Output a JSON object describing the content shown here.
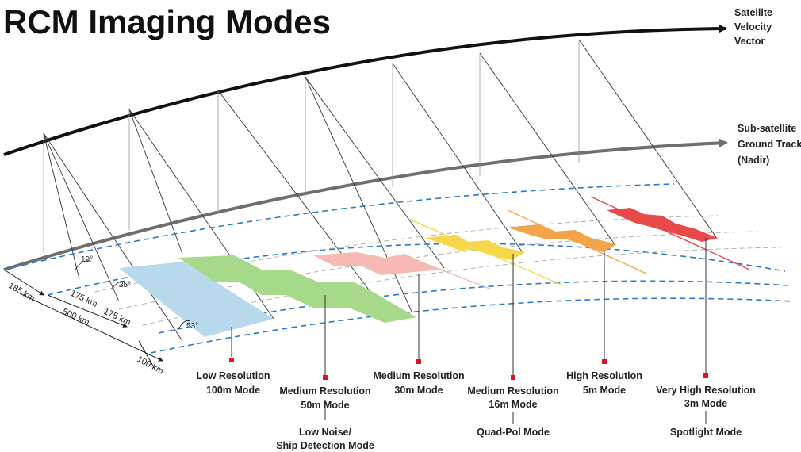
{
  "title": "RCM Imaging Modes",
  "annotations": {
    "velocity": [
      "Satellite",
      "Velocity",
      "Vector"
    ],
    "ground_track": [
      "Sub-satellite",
      "Ground Track",
      "(Nadir)"
    ]
  },
  "angles": {
    "a1": "19°",
    "a2": "35°",
    "a3": "53°"
  },
  "dimensions": {
    "d185": "185 km",
    "d175a": "175 km",
    "d175b": "175 km",
    "d500": "500 km",
    "d100": "100 km"
  },
  "modes": [
    {
      "lines": [
        "Low Resolution",
        "100m Mode"
      ],
      "sub": [],
      "color": "#b8d8ec"
    },
    {
      "lines": [
        "Medium Resolution",
        "50m Mode"
      ],
      "sub": [
        "Low Noise/",
        "Ship Detection Mode"
      ],
      "color": "#a6d98a"
    },
    {
      "lines": [
        "Medium Resolution",
        "30m Mode"
      ],
      "sub": [],
      "color": "#f6b9b4"
    },
    {
      "lines": [
        "Medium Resolution",
        "16m Mode"
      ],
      "sub": [
        "Quad-Pol Mode"
      ],
      "color": "#f6d64a"
    },
    {
      "lines": [
        "High Resolution",
        "5m Mode"
      ],
      "sub": [],
      "color": "#f2a44a"
    },
    {
      "lines": [
        "Very High Resolution",
        "3m Mode"
      ],
      "sub": [
        "Spotlight Mode"
      ],
      "color": "#e84a4a"
    }
  ],
  "colors": {
    "marker": "#d7161e",
    "swath_edge": "#2b79c9",
    "arc": "#111111",
    "track": "#6e6e6e"
  }
}
